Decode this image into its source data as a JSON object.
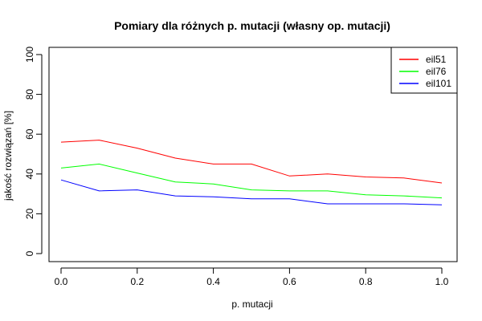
{
  "chart_data": {
    "type": "line",
    "title": "Pomiary dla różnych p. mutacji (własny op. mutacji)",
    "xlabel": "p. mutacji",
    "ylabel": "jakość rozwiązań [%]",
    "xlim": [
      0,
      1
    ],
    "ylim": [
      0,
      100
    ],
    "x_ticks": [
      "0.0",
      "0.2",
      "0.4",
      "0.6",
      "0.8",
      "1.0"
    ],
    "y_ticks": [
      "0",
      "20",
      "40",
      "60",
      "80",
      "100"
    ],
    "x": [
      0.0,
      0.1,
      0.2,
      0.3,
      0.4,
      0.5,
      0.6,
      0.7,
      0.8,
      0.9,
      1.0
    ],
    "series": [
      {
        "name": "eil51",
        "color": "#ff0000",
        "values": [
          56,
          57,
          53,
          48,
          45,
          45,
          39,
          40,
          38.5,
          38,
          35.5
        ]
      },
      {
        "name": "eil76",
        "color": "#00ff00",
        "values": [
          43,
          45,
          40.5,
          36,
          35,
          32,
          31.5,
          31.5,
          29.5,
          29,
          28
        ]
      },
      {
        "name": "eil101",
        "color": "#0000ff",
        "values": [
          37,
          31.5,
          32,
          29,
          28.5,
          27.5,
          27.5,
          25,
          25,
          25,
          24.5
        ]
      }
    ],
    "legend_position": "top-right",
    "grid": false
  }
}
